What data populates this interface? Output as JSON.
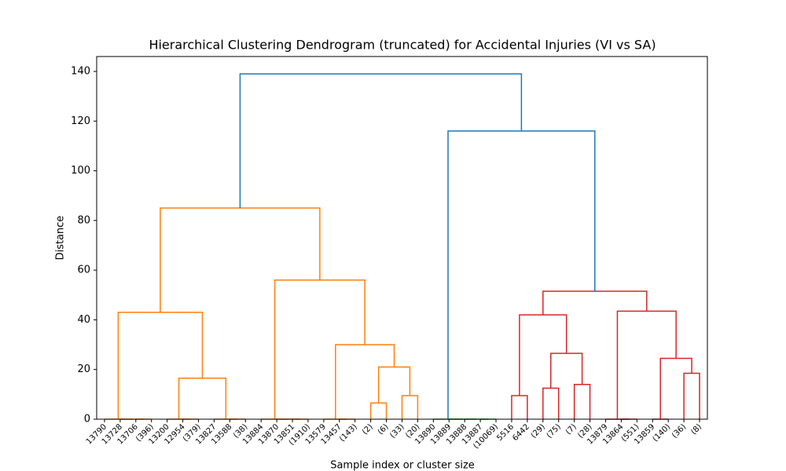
{
  "chart_data": {
    "type": "dendrogram",
    "title": "Hierarchical Clustering Dendrogram (truncated) for Accidental Injuries (VI vs SA)",
    "xlabel": "Sample index or cluster size",
    "ylabel": "Distance",
    "xlim": [
      0,
      390
    ],
    "ylim": [
      0,
      146
    ],
    "yticks": [
      0,
      20,
      40,
      60,
      80,
      100,
      120,
      140
    ],
    "xticks": [
      {
        "value": 5,
        "label": "13790"
      },
      {
        "value": 15,
        "label": "13728"
      },
      {
        "value": 25,
        "label": "13706"
      },
      {
        "value": 35,
        "label": "(396)"
      },
      {
        "value": 45,
        "label": "13200"
      },
      {
        "value": 55,
        "label": "12954"
      },
      {
        "value": 65,
        "label": "(379)"
      },
      {
        "value": 75,
        "label": "13827"
      },
      {
        "value": 85,
        "label": "13588"
      },
      {
        "value": 95,
        "label": "(38)"
      },
      {
        "value": 105,
        "label": "13884"
      },
      {
        "value": 115,
        "label": "13870"
      },
      {
        "value": 125,
        "label": "13851"
      },
      {
        "value": 135,
        "label": "(1910)"
      },
      {
        "value": 145,
        "label": "13579"
      },
      {
        "value": 155,
        "label": "13457"
      },
      {
        "value": 165,
        "label": "(143)"
      },
      {
        "value": 175,
        "label": "(2)"
      },
      {
        "value": 185,
        "label": "(6)"
      },
      {
        "value": 195,
        "label": "(33)"
      },
      {
        "value": 205,
        "label": "(20)"
      },
      {
        "value": 215,
        "label": "13890"
      },
      {
        "value": 225,
        "label": "13889"
      },
      {
        "value": 235,
        "label": "13888"
      },
      {
        "value": 245,
        "label": "13887"
      },
      {
        "value": 255,
        "label": "(10069)"
      },
      {
        "value": 265,
        "label": "5516"
      },
      {
        "value": 275,
        "label": "6442"
      },
      {
        "value": 285,
        "label": "(29)"
      },
      {
        "value": 295,
        "label": "(75)"
      },
      {
        "value": 305,
        "label": "(7)"
      },
      {
        "value": 315,
        "label": "(28)"
      },
      {
        "value": 325,
        "label": "13879"
      },
      {
        "value": 335,
        "label": "13864"
      },
      {
        "value": 345,
        "label": "(551)"
      },
      {
        "value": 355,
        "label": "13859"
      },
      {
        "value": 365,
        "label": "(140)"
      },
      {
        "value": 375,
        "label": "(36)"
      },
      {
        "value": 385,
        "label": "(8)"
      }
    ],
    "links": [
      {
        "x": [
          25,
          25,
          35,
          35
        ],
        "y": [
          0,
          0,
          0,
          0
        ],
        "color": "#ff7f0e"
      },
      {
        "x": [
          15,
          15,
          30,
          30
        ],
        "y": [
          0,
          0,
          0,
          0
        ],
        "color": "#ff7f0e"
      },
      {
        "x": [
          5,
          5,
          22.5,
          22.5
        ],
        "y": [
          0,
          0,
          0,
          0
        ],
        "color": "#ff7f0e"
      },
      {
        "x": [
          55,
          55,
          65,
          65
        ],
        "y": [
          0,
          0,
          0,
          0
        ],
        "color": "#ff7f0e"
      },
      {
        "x": [
          45,
          45,
          60,
          60
        ],
        "y": [
          0,
          0,
          0,
          0
        ],
        "color": "#ff7f0e"
      },
      {
        "x": [
          85,
          85,
          95,
          95
        ],
        "y": [
          0,
          0,
          0,
          0
        ],
        "color": "#ff7f0e"
      },
      {
        "x": [
          75,
          75,
          90,
          90
        ],
        "y": [
          0,
          0,
          0,
          0
        ],
        "color": "#ff7f0e"
      },
      {
        "x": [
          52.5,
          52.5,
          82.5,
          82.5
        ],
        "y": [
          0,
          16.5,
          16.5,
          0
        ],
        "color": "#ff7f0e"
      },
      {
        "x": [
          13.75,
          13.75,
          67.5,
          67.5
        ],
        "y": [
          0,
          43,
          43,
          16.5
        ],
        "color": "#ff7f0e"
      },
      {
        "x": [
          125,
          125,
          135,
          135
        ],
        "y": [
          0,
          0,
          0,
          0
        ],
        "color": "#ff7f0e"
      },
      {
        "x": [
          115,
          115,
          130,
          130
        ],
        "y": [
          0,
          0,
          0,
          0
        ],
        "color": "#ff7f0e"
      },
      {
        "x": [
          105,
          105,
          122.5,
          122.5
        ],
        "y": [
          0,
          0,
          0,
          0
        ],
        "color": "#ff7f0e"
      },
      {
        "x": [
          155,
          155,
          165,
          165
        ],
        "y": [
          0,
          0,
          0,
          0
        ],
        "color": "#ff7f0e"
      },
      {
        "x": [
          145,
          145,
          160,
          160
        ],
        "y": [
          0,
          0,
          0,
          0
        ],
        "color": "#ff7f0e"
      },
      {
        "x": [
          175,
          175,
          185,
          185
        ],
        "y": [
          0,
          6.5,
          6.5,
          0
        ],
        "color": "#ff7f0e"
      },
      {
        "x": [
          195,
          195,
          205,
          205
        ],
        "y": [
          0,
          9.5,
          9.5,
          0
        ],
        "color": "#ff7f0e"
      },
      {
        "x": [
          180,
          180,
          200,
          200
        ],
        "y": [
          6.5,
          21,
          21,
          9.5
        ],
        "color": "#ff7f0e"
      },
      {
        "x": [
          152.5,
          152.5,
          190,
          190
        ],
        "y": [
          0,
          30,
          30,
          21
        ],
        "color": "#ff7f0e"
      },
      {
        "x": [
          113.75,
          113.75,
          171.25,
          171.25
        ],
        "y": [
          0,
          56,
          56,
          30
        ],
        "color": "#ff7f0e"
      },
      {
        "x": [
          40.625,
          40.625,
          142.5,
          142.5
        ],
        "y": [
          43,
          85,
          85,
          56
        ],
        "color": "#ff7f0e"
      },
      {
        "x": [
          245,
          245,
          255,
          255
        ],
        "y": [
          0,
          0,
          0,
          0
        ],
        "color": "#2ca02c"
      },
      {
        "x": [
          235,
          235,
          250,
          250
        ],
        "y": [
          0,
          0,
          0,
          0
        ],
        "color": "#2ca02c"
      },
      {
        "x": [
          225,
          225,
          242.5,
          242.5
        ],
        "y": [
          0,
          0,
          0,
          0
        ],
        "color": "#2ca02c"
      },
      {
        "x": [
          215,
          215,
          233.75,
          233.75
        ],
        "y": [
          0,
          0,
          0,
          0
        ],
        "color": "#2ca02c"
      },
      {
        "x": [
          265,
          265,
          275,
          275
        ],
        "y": [
          0,
          9.5,
          9.5,
          0
        ],
        "color": "#d62728"
      },
      {
        "x": [
          285,
          285,
          295,
          295
        ],
        "y": [
          0,
          12.5,
          12.5,
          0
        ],
        "color": "#d62728"
      },
      {
        "x": [
          305,
          305,
          315,
          315
        ],
        "y": [
          0,
          14,
          14,
          0
        ],
        "color": "#d62728"
      },
      {
        "x": [
          290,
          290,
          310,
          310
        ],
        "y": [
          12.5,
          26.5,
          26.5,
          14
        ],
        "color": "#d62728"
      },
      {
        "x": [
          270,
          270,
          300,
          300
        ],
        "y": [
          9.5,
          42,
          42,
          26.5
        ],
        "color": "#d62728"
      },
      {
        "x": [
          335,
          335,
          345,
          345
        ],
        "y": [
          0,
          0,
          0,
          0
        ],
        "color": "#d62728"
      },
      {
        "x": [
          325,
          325,
          340,
          340
        ],
        "y": [
          0,
          0,
          0,
          0
        ],
        "color": "#d62728"
      },
      {
        "x": [
          355,
          355,
          365,
          365
        ],
        "y": [
          0,
          0,
          0,
          0
        ],
        "color": "#d62728"
      },
      {
        "x": [
          375,
          375,
          385,
          385
        ],
        "y": [
          0,
          18.5,
          18.5,
          0
        ],
        "color": "#d62728"
      },
      {
        "x": [
          360,
          360,
          380,
          380
        ],
        "y": [
          0,
          24.5,
          24.5,
          18.5
        ],
        "color": "#d62728"
      },
      {
        "x": [
          332.5,
          332.5,
          370,
          370
        ],
        "y": [
          0,
          43.5,
          43.5,
          24.5
        ],
        "color": "#d62728"
      },
      {
        "x": [
          285,
          285,
          351.25,
          351.25
        ],
        "y": [
          42,
          51.5,
          51.5,
          43.5
        ],
        "color": "#d62728"
      },
      {
        "x": [
          224.375,
          224.375,
          318.125,
          318.125
        ],
        "y": [
          0,
          116,
          116,
          51.5
        ],
        "color": "#1f77b4"
      },
      {
        "x": [
          91.5625,
          91.5625,
          271.25,
          271.25
        ],
        "y": [
          85,
          139,
          139,
          116
        ],
        "color": "#1f77b4"
      }
    ]
  }
}
